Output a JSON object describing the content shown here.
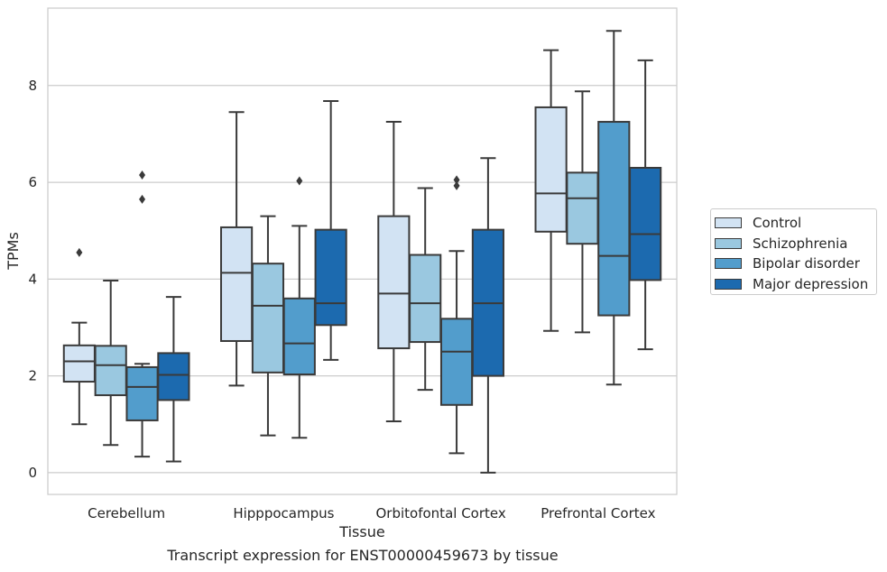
{
  "chart_data": {
    "type": "box",
    "title": "",
    "xlabel": "Tissue",
    "ylabel": "TPMs",
    "caption": "Transcript expression for ENST00000459673 by tissue",
    "ylim": [
      -0.45,
      9.6
    ],
    "yticks": [
      0,
      2,
      4,
      6,
      8
    ],
    "grid": "horizontal",
    "legend_position": "right",
    "categories": [
      "Cerebellum",
      "Hipppocampus",
      "Orbitofontal Cortex",
      "Prefrontal Cortex"
    ],
    "series": [
      {
        "name": "Control",
        "color": "#d2e3f3",
        "boxes": [
          {
            "whisker_low": 1.0,
            "q1": 1.88,
            "median": 2.3,
            "q3": 2.63,
            "whisker_high": 3.1,
            "outliers": [
              4.55
            ]
          },
          {
            "whisker_low": 1.8,
            "q1": 2.72,
            "median": 4.13,
            "q3": 5.07,
            "whisker_high": 7.45,
            "outliers": []
          },
          {
            "whisker_low": 1.06,
            "q1": 2.57,
            "median": 3.7,
            "q3": 5.3,
            "whisker_high": 7.25,
            "outliers": []
          },
          {
            "whisker_low": 2.93,
            "q1": 4.98,
            "median": 5.77,
            "q3": 7.55,
            "whisker_high": 8.73,
            "outliers": []
          }
        ]
      },
      {
        "name": "Schizophrenia",
        "color": "#9ac8e0",
        "boxes": [
          {
            "whisker_low": 0.57,
            "q1": 1.6,
            "median": 2.22,
            "q3": 2.62,
            "whisker_high": 3.97,
            "outliers": []
          },
          {
            "whisker_low": 0.77,
            "q1": 2.07,
            "median": 3.45,
            "q3": 4.32,
            "whisker_high": 5.3,
            "outliers": []
          },
          {
            "whisker_low": 1.71,
            "q1": 2.7,
            "median": 3.5,
            "q3": 4.5,
            "whisker_high": 5.88,
            "outliers": []
          },
          {
            "whisker_low": 2.9,
            "q1": 4.73,
            "median": 5.67,
            "q3": 6.2,
            "whisker_high": 7.88,
            "outliers": []
          }
        ]
      },
      {
        "name": "Bipolar disorder",
        "color": "#529dcc",
        "boxes": [
          {
            "whisker_low": 0.33,
            "q1": 1.08,
            "median": 1.77,
            "q3": 2.18,
            "whisker_high": 2.25,
            "outliers": [
              5.65,
              6.15
            ]
          },
          {
            "whisker_low": 0.72,
            "q1": 2.03,
            "median": 2.67,
            "q3": 3.6,
            "whisker_high": 5.1,
            "outliers": [
              6.03
            ]
          },
          {
            "whisker_low": 0.4,
            "q1": 1.4,
            "median": 2.5,
            "q3": 3.18,
            "whisker_high": 4.58,
            "outliers": [
              5.93,
              6.05
            ]
          },
          {
            "whisker_low": 1.82,
            "q1": 3.25,
            "median": 4.48,
            "q3": 7.25,
            "whisker_high": 9.13,
            "outliers": []
          }
        ]
      },
      {
        "name": "Major depression",
        "color": "#1c6aaf",
        "boxes": [
          {
            "whisker_low": 0.23,
            "q1": 1.5,
            "median": 2.02,
            "q3": 2.47,
            "whisker_high": 3.63,
            "outliers": []
          },
          {
            "whisker_low": 2.33,
            "q1": 3.05,
            "median": 3.5,
            "q3": 5.02,
            "whisker_high": 7.68,
            "outliers": []
          },
          {
            "whisker_low": 0.0,
            "q1": 2.0,
            "median": 3.5,
            "q3": 5.02,
            "whisker_high": 6.5,
            "outliers": []
          },
          {
            "whisker_low": 2.55,
            "q1": 3.98,
            "median": 4.93,
            "q3": 6.3,
            "whisker_high": 8.52,
            "outliers": []
          }
        ]
      }
    ]
  }
}
